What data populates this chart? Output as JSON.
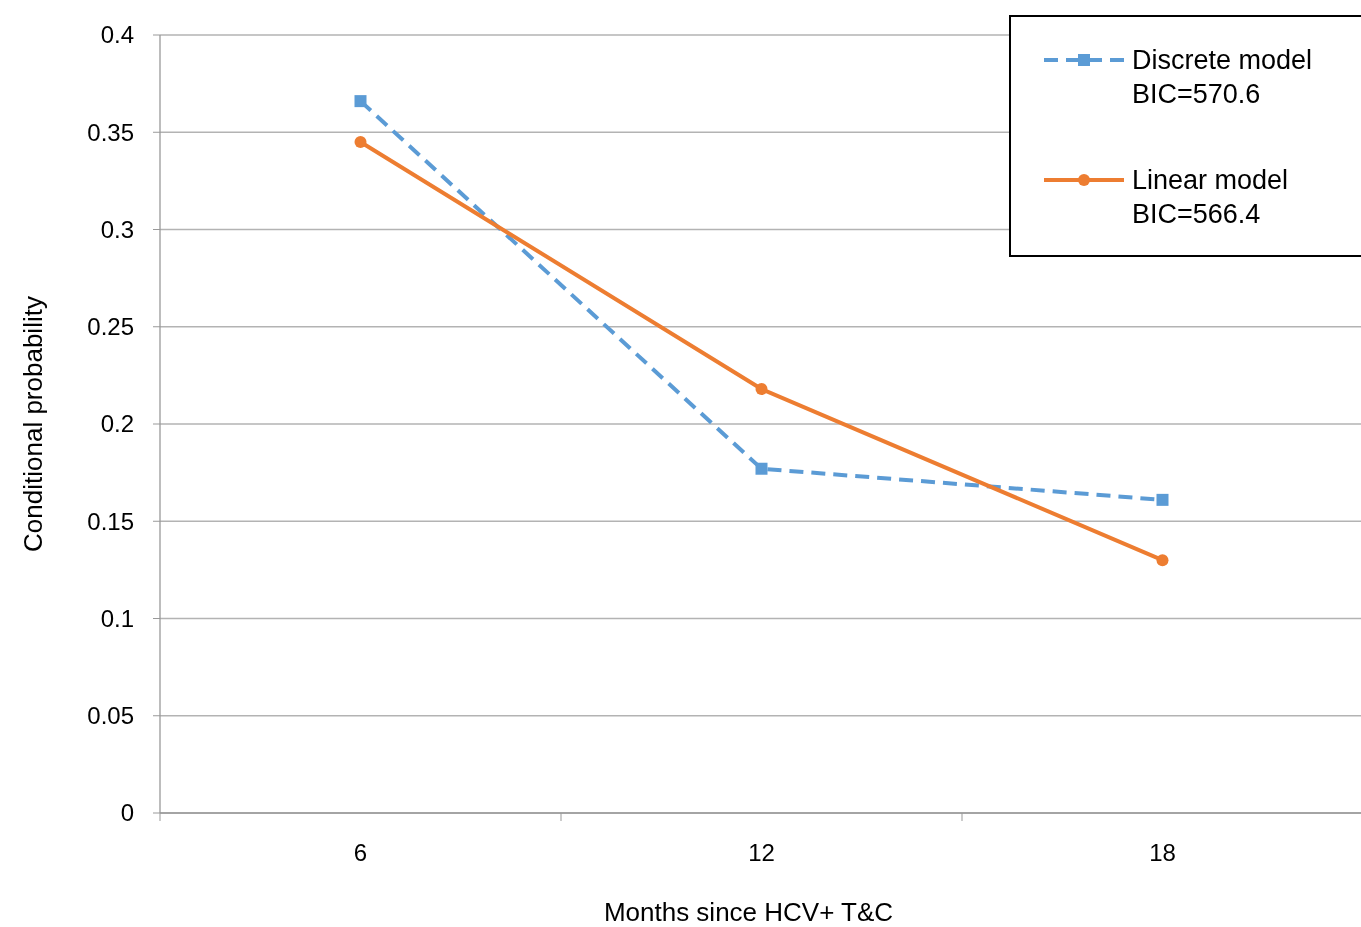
{
  "chart_data": {
    "type": "line",
    "xlabel": "Months since HCV+ T&C",
    "ylabel": "Conditional probability",
    "categories": [
      "6",
      "12",
      "18"
    ],
    "series": [
      {
        "name": "Discrete model\nBIC=570.6",
        "color": "#5b9bd5",
        "values": [
          0.366,
          0.177,
          0.161
        ],
        "marker": "square",
        "line_style": "dashed"
      },
      {
        "name": "Linear model\nBIC=566.4",
        "color": "#ed7d31",
        "values": [
          0.345,
          0.218,
          0.13
        ],
        "marker": "circle",
        "line_style": "solid"
      }
    ],
    "ylim": [
      0,
      0.4
    ],
    "yticks": [
      0,
      0.05,
      0.1,
      0.15,
      0.2,
      0.25,
      0.3,
      0.35,
      0.4
    ],
    "grid": "y",
    "legend": "top right"
  }
}
